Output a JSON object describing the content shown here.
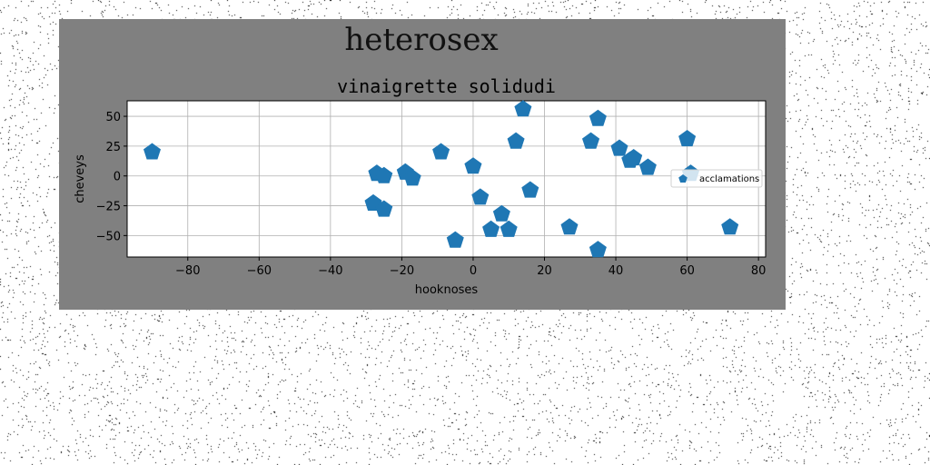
{
  "figure": {
    "suptitle": "heterosex",
    "background_color": "#808080",
    "plot_background": "#ffffff",
    "marker_color": "#1f77b4"
  },
  "chart_data": {
    "type": "scatter",
    "title": "vinaigrette solidudi",
    "xlabel": "hooknoses",
    "ylabel": "cheveys",
    "xlim": [
      -97,
      82
    ],
    "ylim": [
      -68,
      63
    ],
    "xticks": [
      -80,
      -60,
      -40,
      -20,
      0,
      20,
      40,
      60,
      80
    ],
    "yticks": [
      -50,
      -25,
      0,
      25,
      50
    ],
    "grid": true,
    "marker": "pentagon",
    "legend_position": "center-right",
    "series": [
      {
        "name": "acclamations",
        "points": [
          {
            "x": -90,
            "y": 20
          },
          {
            "x": -27,
            "y": 2
          },
          {
            "x": -25,
            "y": 0
          },
          {
            "x": -28,
            "y": -23
          },
          {
            "x": -25,
            "y": -28
          },
          {
            "x": -19,
            "y": 3
          },
          {
            "x": -17,
            "y": -2
          },
          {
            "x": -9,
            "y": 20
          },
          {
            "x": -5,
            "y": -54
          },
          {
            "x": 0,
            "y": 8
          },
          {
            "x": 2,
            "y": -18
          },
          {
            "x": 5,
            "y": -45
          },
          {
            "x": 8,
            "y": -32
          },
          {
            "x": 10,
            "y": -45
          },
          {
            "x": 12,
            "y": 29
          },
          {
            "x": 14,
            "y": 56
          },
          {
            "x": 16,
            "y": -12
          },
          {
            "x": 27,
            "y": -43
          },
          {
            "x": 33,
            "y": 29
          },
          {
            "x": 35,
            "y": 48
          },
          {
            "x": 35,
            "y": -62
          },
          {
            "x": 41,
            "y": 23
          },
          {
            "x": 44,
            "y": 13
          },
          {
            "x": 45,
            "y": 15
          },
          {
            "x": 49,
            "y": 7
          },
          {
            "x": 60,
            "y": 31
          },
          {
            "x": 61,
            "y": 2
          },
          {
            "x": 72,
            "y": -43
          }
        ]
      }
    ]
  }
}
